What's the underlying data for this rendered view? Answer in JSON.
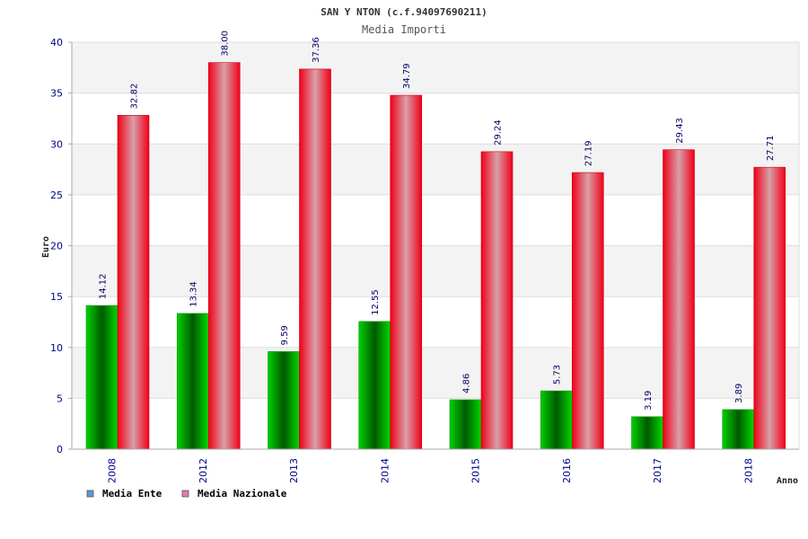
{
  "chart_data": {
    "type": "bar",
    "title": "SAN Y NTON (c.f.94097690211)",
    "subtitle": "Media Importi",
    "xlabel": "Anno",
    "ylabel": "Euro",
    "ylim": [
      0,
      40
    ],
    "yticks": [
      "0",
      "5",
      "10",
      "15",
      "20",
      "25",
      "30",
      "35",
      "40"
    ],
    "categories": [
      "2008",
      "2012",
      "2013",
      "2014",
      "2015",
      "2016",
      "2017",
      "2018"
    ],
    "series": [
      {
        "name": "Media Ente",
        "values": [
          14.12,
          13.34,
          9.59,
          12.55,
          4.86,
          5.73,
          3.19,
          3.89
        ],
        "labels": [
          "14.12",
          "13.34",
          "9.59",
          "12.55",
          "4.86",
          "5.73",
          "3.19",
          "3.89"
        ],
        "color": "#00aa00",
        "legend_color": "#5b9bd5"
      },
      {
        "name": "Media Nazionale",
        "values": [
          32.82,
          38.0,
          37.36,
          34.79,
          29.24,
          27.19,
          29.43,
          27.71
        ],
        "labels": [
          "32.82",
          "38.00",
          "37.36",
          "34.79",
          "29.24",
          "27.19",
          "29.43",
          "27.71"
        ],
        "color": "#ee1122",
        "legend_color": "#e07bb0"
      }
    ],
    "grid": true,
    "legend_position": "bottom-left"
  }
}
